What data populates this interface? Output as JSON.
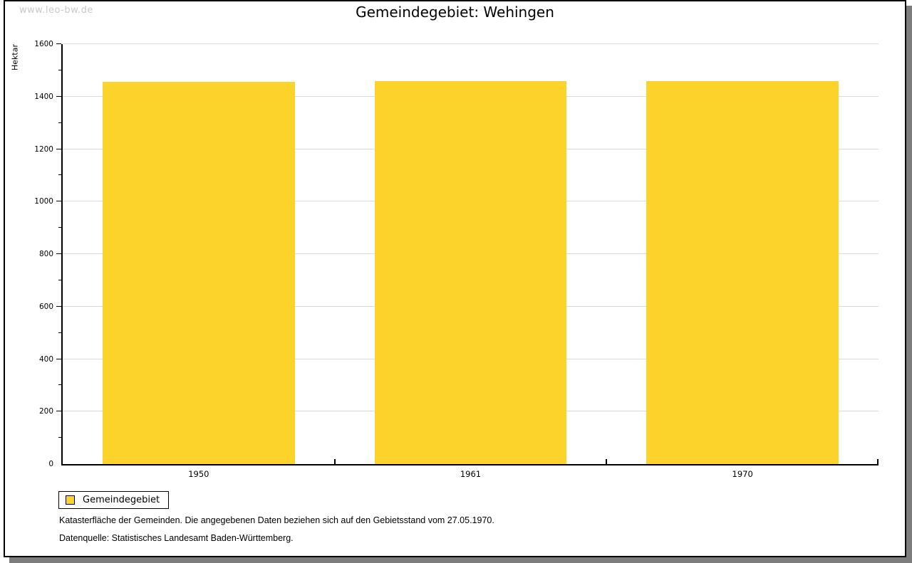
{
  "watermark": "www.leo-bw.de",
  "title": "Gemeindegebiet: Wehingen",
  "chart_data": {
    "type": "bar",
    "title": "Gemeindegebiet: Wehingen",
    "categories": [
      "1950",
      "1961",
      "1970"
    ],
    "series": [
      {
        "name": "Gemeindegebiet",
        "values": [
          1455,
          1460,
          1460
        ]
      }
    ],
    "xlabel": "",
    "ylabel": "Hektar",
    "ylim": [
      0,
      1600
    ],
    "ytick_step": 200,
    "minor_tick_step": 100,
    "grid": true,
    "legend_position": "bottom-left",
    "bar_color": "#fcd32b"
  },
  "legend": {
    "items": [
      {
        "label": "Gemeindegebiet",
        "color": "#fcd32b"
      }
    ]
  },
  "notes": [
    "Katasterfläche der Gemeinden. Die angegebenen Daten beziehen sich auf den Gebietsstand vom 27.05.1970.",
    "Datenquelle: Statistisches Landesamt Baden-Württemberg."
  ],
  "colors": {
    "bar": "#fcd32b",
    "gridline": "#dbdbdb",
    "axis": "#000000",
    "watermark": "#c9c9c9",
    "shadow": "#7d7d7d"
  }
}
